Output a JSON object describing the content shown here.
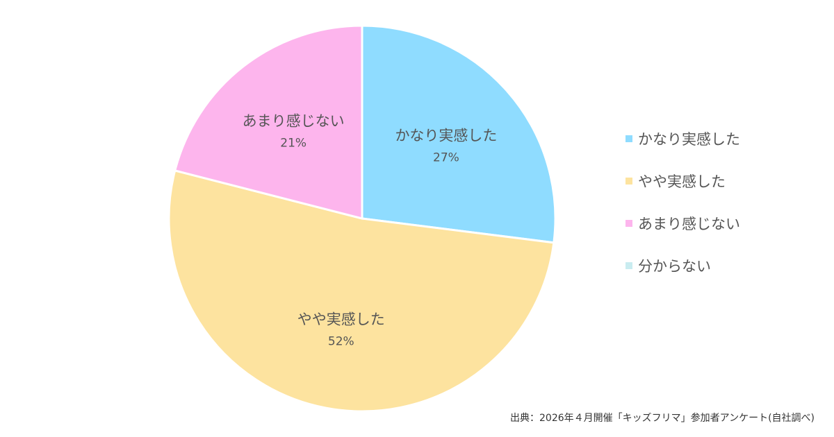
{
  "chart_data": {
    "type": "pie",
    "title": "",
    "categories": [
      "かなり実感した",
      "やや実感した",
      "あまり感じない",
      "分からない"
    ],
    "values": [
      27,
      52,
      21,
      0
    ],
    "value_labels": [
      "27%",
      "52%",
      "21%",
      ""
    ],
    "colors": [
      "#8fdcff",
      "#fde39f",
      "#fdb5ed",
      "#c9ecf0"
    ],
    "start_angle_deg": 0,
    "direction": "clockwise",
    "legend": {
      "position": "right",
      "entries": [
        "かなり実感した",
        "やや実感した",
        "あまり感じない",
        "分からない"
      ]
    }
  },
  "source": "出典：2026年４月開催「キッズフリマ」参加者アンケート(自社調べ)"
}
